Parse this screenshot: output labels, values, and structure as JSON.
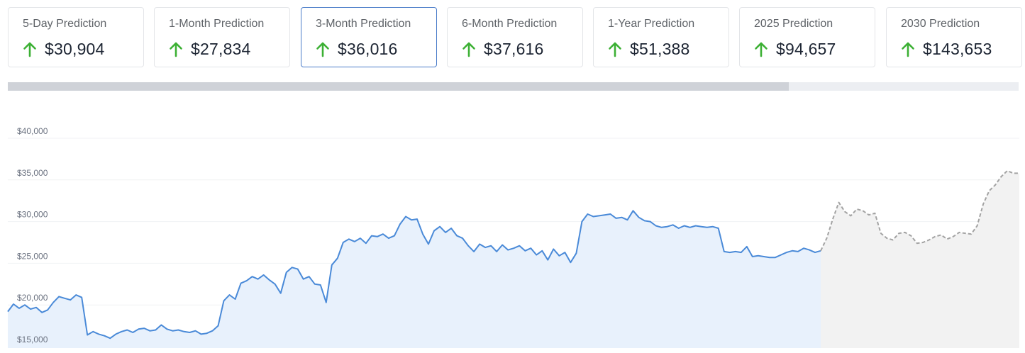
{
  "predictions": [
    {
      "label": "5-Day Prediction",
      "value": "$30,904",
      "direction": "up-arrow-icon"
    },
    {
      "label": "1-Month Prediction",
      "value": "$27,834",
      "direction": "up-arrow-icon"
    },
    {
      "label": "3-Month Prediction",
      "value": "$36,016",
      "direction": "up-arrow-icon",
      "selected": true
    },
    {
      "label": "6-Month Prediction",
      "value": "$37,616",
      "direction": "up-arrow-icon"
    },
    {
      "label": "1-Year Prediction",
      "value": "$51,388",
      "direction": "up-arrow-icon"
    },
    {
      "label": "2025 Prediction",
      "value": "$94,657",
      "direction": "up-arrow-icon"
    },
    {
      "label": "2030 Prediction",
      "value": "$143,653",
      "direction": "up-arrow-icon"
    }
  ],
  "colors": {
    "arrow_up": "#3cb034",
    "selected_border": "#4a7cc9",
    "history_line": "#4a8ad8",
    "history_fill": "#e8f1fc",
    "forecast_line": "#a3a3a3",
    "forecast_fill": "#f2f2f2"
  },
  "chart_data": {
    "type": "area",
    "y_tick_labels": [
      "$40,000",
      "$35,000",
      "$30,000",
      "$25,000",
      "$20,000",
      "$15,000"
    ],
    "y_ticks": [
      40000,
      35000,
      30000,
      25000,
      20000,
      15000
    ],
    "ylim": [
      15000,
      40000
    ],
    "grid": true,
    "series": [
      {
        "kind": "history",
        "values": [
          19200,
          20100,
          19600,
          20000,
          19500,
          19700,
          19100,
          19400,
          20300,
          21000,
          20800,
          20600,
          21200,
          20900,
          16400,
          16800,
          16500,
          16300,
          16000,
          16500,
          16800,
          17000,
          16700,
          17100,
          17200,
          16900,
          17000,
          17600,
          17100,
          16900,
          17000,
          16800,
          16700,
          16900,
          16500,
          16600,
          16900,
          17500,
          20500,
          21200,
          20700,
          22600,
          22900,
          23400,
          23100,
          23600,
          23000,
          22500,
          21400,
          23900,
          24500,
          24300,
          23100,
          23400,
          22500,
          22400,
          20300,
          24800,
          25600,
          27500,
          27900,
          27600,
          28000,
          27400,
          28300,
          28200,
          28500,
          28000,
          28300,
          29700,
          30600,
          30200,
          30300,
          28500,
          27300,
          28900,
          29400,
          28700,
          29200,
          28300,
          28000,
          27100,
          26400,
          27300,
          26900,
          27100,
          26400,
          27200,
          26600,
          26800,
          27100,
          26500,
          26800,
          26000,
          26500,
          25400,
          26700,
          25900,
          26300,
          25100,
          26200,
          30000,
          30900,
          30600,
          30700,
          30800,
          30900,
          30400,
          30500,
          30200,
          31300,
          30500,
          30100,
          30000,
          29500,
          29300,
          29400,
          29600,
          29200,
          29500,
          29300,
          29500,
          29400,
          29300,
          29400,
          29200,
          26400,
          26300,
          26400,
          26300,
          27000,
          25800,
          25900,
          25800,
          25700,
          25700,
          26000,
          26300,
          26500,
          26400,
          26800,
          26600,
          26300,
          26500
        ]
      },
      {
        "kind": "forecast",
        "values": [
          26500,
          28000,
          30300,
          32300,
          31200,
          30700,
          31500,
          31300,
          30800,
          31000,
          28600,
          28000,
          27800,
          28600,
          28700,
          28300,
          27400,
          27500,
          27800,
          28200,
          28400,
          27900,
          28200,
          28700,
          28600,
          28500,
          29500,
          32100,
          33700,
          34400,
          35400,
          36100,
          35800,
          35800
        ]
      }
    ]
  }
}
